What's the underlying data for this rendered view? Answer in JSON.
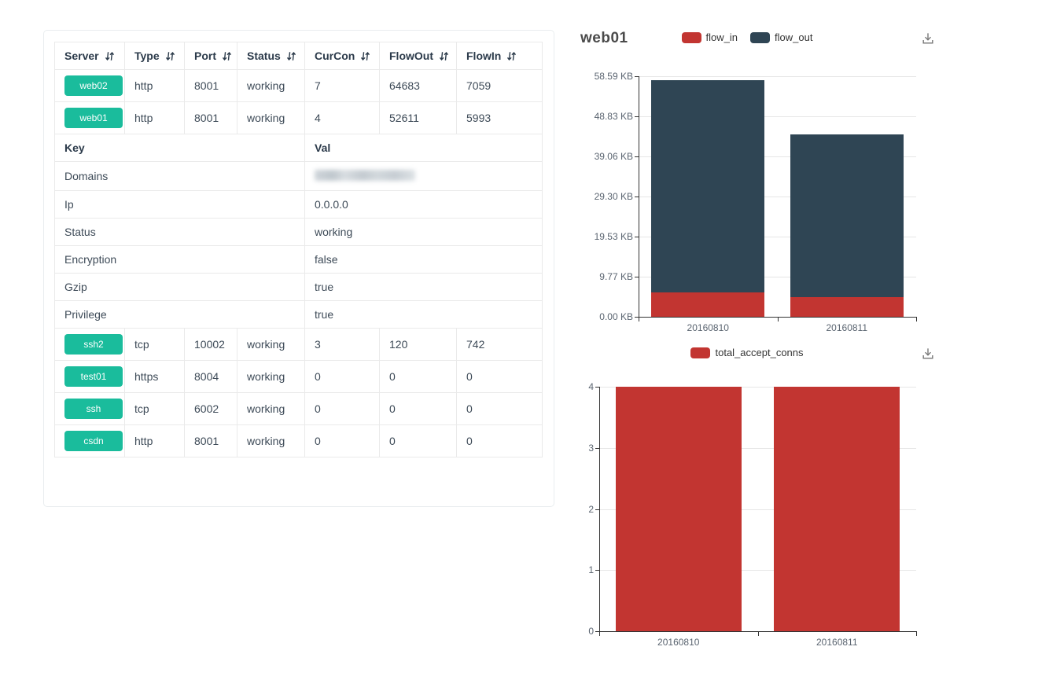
{
  "colors": {
    "badge_green": "#1abc9c",
    "chart_red": "#c23531",
    "chart_dark": "#2f4554",
    "axis": "#333333",
    "gridline": "#e6e6e6"
  },
  "table": {
    "columns": [
      "Server",
      "Type",
      "Port",
      "Status",
      "CurCon",
      "FlowOut",
      "FlowIn"
    ],
    "top_rows": [
      {
        "server": "web02",
        "type": "http",
        "port": "8001",
        "status": "working",
        "curcon": "7",
        "flowout": "64683",
        "flowin": "7059"
      },
      {
        "server": "web01",
        "type": "http",
        "port": "8001",
        "status": "working",
        "curcon": "4",
        "flowout": "52611",
        "flowin": "5993"
      }
    ],
    "kv_header": {
      "key": "Key",
      "val": "Val"
    },
    "kv_rows": [
      {
        "key": "Domains",
        "val": "",
        "redacted": true
      },
      {
        "key": "Ip",
        "val": "0.0.0.0"
      },
      {
        "key": "Status",
        "val": "working"
      },
      {
        "key": "Encryption",
        "val": "false"
      },
      {
        "key": "Gzip",
        "val": "true"
      },
      {
        "key": "Privilege",
        "val": "true"
      }
    ],
    "bottom_rows": [
      {
        "server": "ssh2",
        "type": "tcp",
        "port": "10002",
        "status": "working",
        "curcon": "3",
        "flowout": "120",
        "flowin": "742"
      },
      {
        "server": "test01",
        "type": "https",
        "port": "8004",
        "status": "working",
        "curcon": "0",
        "flowout": "0",
        "flowin": "0"
      },
      {
        "server": "ssh",
        "type": "tcp",
        "port": "6002",
        "status": "working",
        "curcon": "0",
        "flowout": "0",
        "flowin": "0"
      },
      {
        "server": "csdn",
        "type": "http",
        "port": "8001",
        "status": "working",
        "curcon": "0",
        "flowout": "0",
        "flowin": "0"
      }
    ]
  },
  "chart_data": [
    {
      "type": "bar",
      "stacked": true,
      "title": "web01",
      "categories": [
        "20160810",
        "20160811"
      ],
      "series": [
        {
          "name": "flow_in",
          "color": "#c23531",
          "values": [
            5.9,
            4.8
          ]
        },
        {
          "name": "flow_out",
          "color": "#2f4554",
          "values": [
            51.7,
            39.6
          ]
        }
      ],
      "unit": "KB",
      "ylim": [
        0,
        58.59
      ],
      "yticks": [
        "58.59 KB",
        "48.83 KB",
        "39.06 KB",
        "29.30 KB",
        "19.53 KB",
        "9.77 KB",
        "0.00 KB"
      ],
      "legend_position": "top-center",
      "grid": true
    },
    {
      "type": "bar",
      "stacked": false,
      "title": "",
      "categories": [
        "20160810",
        "20160811"
      ],
      "series": [
        {
          "name": "total_accept_conns",
          "color": "#c23531",
          "values": [
            4,
            4
          ]
        }
      ],
      "unit": "",
      "ylim": [
        0,
        4
      ],
      "yticks": [
        "4",
        "3",
        "2",
        "1",
        "0"
      ],
      "legend_position": "top-center",
      "grid": true
    }
  ]
}
